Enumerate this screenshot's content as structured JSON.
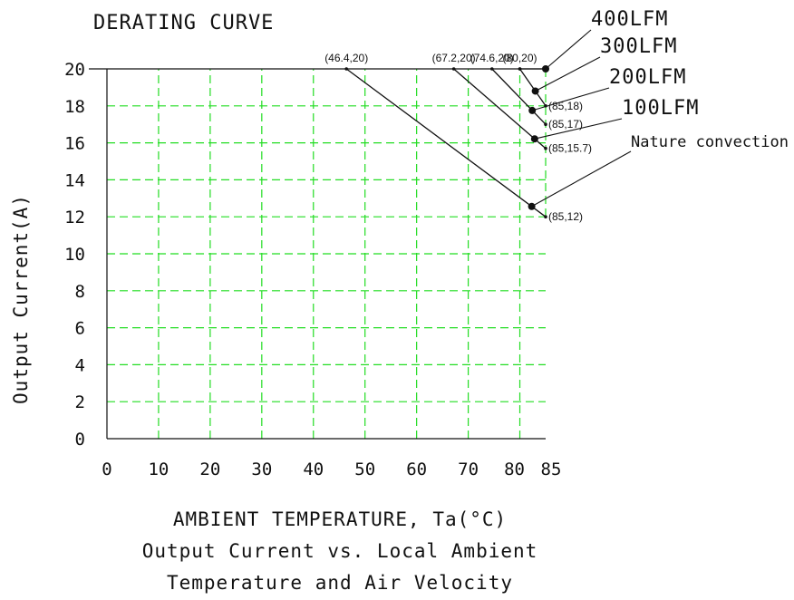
{
  "chart_data": {
    "type": "line",
    "title": "DERATING CURVE",
    "xlabel": "AMBIENT TEMPERATURE, Ta(°C)",
    "ylabel": "Output Current(A)",
    "caption": [
      "Output Current vs. Local Ambient",
      "Temperature and Air Velocity"
    ],
    "xlim": [
      0,
      85
    ],
    "ylim": [
      0,
      20
    ],
    "x_ticks": [
      0,
      10,
      20,
      30,
      40,
      50,
      60,
      70,
      80,
      85
    ],
    "x_tick_labels": [
      "0",
      "10",
      "20",
      "30",
      "40",
      "50",
      "60",
      "70",
      "80",
      "85"
    ],
    "y_ticks": [
      0,
      2,
      4,
      6,
      8,
      10,
      12,
      14,
      16,
      18,
      20
    ],
    "y_tick_labels": [
      "0",
      "2",
      "4",
      "6",
      "8",
      "10",
      "12",
      "14",
      "16",
      "18",
      "20"
    ],
    "grid": true,
    "grid_color": "#22dd22",
    "line_color": "#111111",
    "series": [
      {
        "name": "400LFM",
        "points": [
          [
            80,
            20
          ],
          [
            85,
            20
          ]
        ],
        "callout_at": 1.0
      },
      {
        "name": "300LFM",
        "points": [
          [
            80,
            20
          ],
          [
            85,
            18
          ]
        ],
        "callout_at": 0.6
      },
      {
        "name": "200LFM",
        "points": [
          [
            74.6,
            20
          ],
          [
            85,
            17
          ]
        ],
        "callout_at": 0.75
      },
      {
        "name": "100LFM",
        "points": [
          [
            67.2,
            20
          ],
          [
            85,
            15.7
          ]
        ],
        "callout_at": 0.88
      },
      {
        "name": "Nature convection",
        "points": [
          [
            46.4,
            20
          ],
          [
            85,
            12
          ]
        ],
        "callout_at": 0.93
      }
    ],
    "annotations": [
      {
        "text": "(46.4,20)",
        "x": 46.4,
        "y": 20,
        "pos": "above"
      },
      {
        "text": "(67.2,20)",
        "x": 67.2,
        "y": 20,
        "pos": "above"
      },
      {
        "text": "(74.6,20)",
        "x": 74.6,
        "y": 20,
        "pos": "above"
      },
      {
        "text": "(80,20)",
        "x": 80,
        "y": 20,
        "pos": "above"
      },
      {
        "text": "(85,18)",
        "x": 85,
        "y": 18,
        "pos": "right"
      },
      {
        "text": "(85,17)",
        "x": 85,
        "y": 17,
        "pos": "right"
      },
      {
        "text": "(85,15.7)",
        "x": 85,
        "y": 15.7,
        "pos": "right"
      },
      {
        "text": "(85,12)",
        "x": 85,
        "y": 12,
        "pos": "right"
      }
    ]
  }
}
